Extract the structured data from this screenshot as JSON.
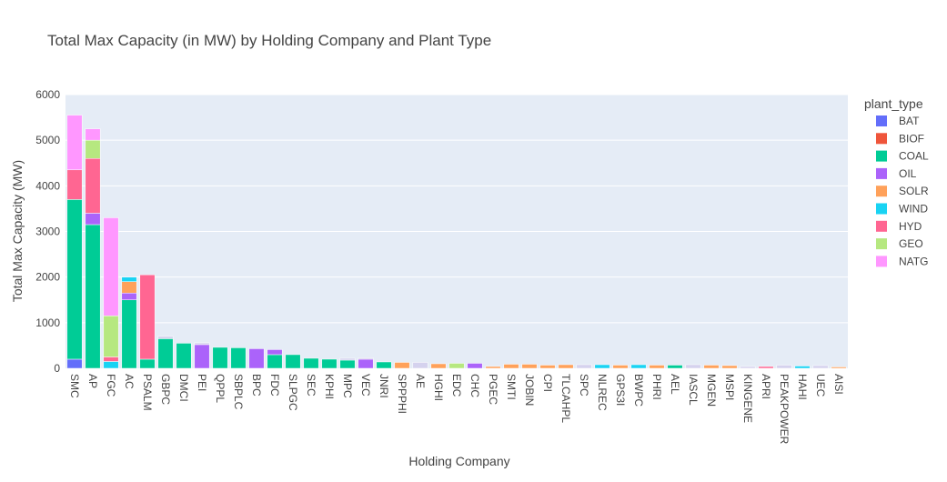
{
  "chart_data": {
    "type": "bar",
    "stacked": true,
    "title": "Total Max Capacity (in MW) by Holding Company and Plant Type",
    "xlabel": "Holding Company",
    "ylabel": "Total Max Capacity (MW)",
    "ylim": [
      0,
      6000
    ],
    "yticks": [
      0,
      1000,
      2000,
      3000,
      4000,
      5000,
      6000
    ],
    "grid": true,
    "legend_title": "plant_type",
    "legend_position": "right",
    "categories": [
      "SMC",
      "AP",
      "FGC",
      "AC",
      "PSALM",
      "GBPC",
      "DMCI",
      "PEI",
      "QPPL",
      "SBPLC",
      "BPC",
      "FDC",
      "SLPGC",
      "SEC",
      "KPHI",
      "MPC",
      "VEC",
      "JNRI",
      "SPPPHI",
      "AE",
      "HGHI",
      "EDC",
      "CHC",
      "PGEC",
      "SMTI",
      "JOBIN",
      "CPI",
      "TLCAHPL",
      "SPC",
      "NLREC",
      "GPS3I",
      "BWPC",
      "PHRI",
      "AEL",
      "IASCL",
      "MGEN",
      "MSPI",
      "KINGENE",
      "APRI",
      "PEAKPOWER",
      "HAHI",
      "UEC",
      "AISI"
    ],
    "series": [
      {
        "name": "BAT",
        "color": "#636efa",
        "values": [
          200,
          0,
          0,
          0,
          0,
          0,
          0,
          0,
          0,
          0,
          0,
          0,
          0,
          0,
          0,
          0,
          0,
          0,
          0,
          0,
          0,
          0,
          0,
          0,
          0,
          0,
          0,
          0,
          0,
          0,
          0,
          0,
          0,
          0,
          0,
          0,
          0,
          0,
          0,
          0,
          0,
          0,
          0
        ]
      },
      {
        "name": "BIOF",
        "color": "#EF553B",
        "values": [
          0,
          0,
          0,
          0,
          0,
          0,
          0,
          0,
          0,
          0,
          0,
          0,
          0,
          0,
          0,
          0,
          0,
          0,
          0,
          0,
          0,
          0,
          0,
          0,
          0,
          0,
          0,
          0,
          0,
          0,
          0,
          0,
          0,
          0,
          0,
          0,
          0,
          0,
          0,
          0,
          0,
          0,
          0
        ]
      },
      {
        "name": "COAL",
        "color": "#00cc96",
        "values": [
          3500,
          3150,
          0,
          1500,
          200,
          650,
          550,
          0,
          460,
          450,
          0,
          300,
          300,
          220,
          200,
          180,
          0,
          140,
          0,
          0,
          0,
          0,
          0,
          0,
          0,
          0,
          0,
          0,
          0,
          0,
          0,
          0,
          0,
          70,
          0,
          0,
          0,
          0,
          0,
          0,
          0,
          0,
          0
        ]
      },
      {
        "name": "OIL",
        "color": "#ab63fa",
        "values": [
          0,
          250,
          0,
          150,
          0,
          0,
          0,
          520,
          0,
          0,
          430,
          110,
          0,
          0,
          0,
          0,
          200,
          0,
          0,
          0,
          0,
          0,
          110,
          0,
          0,
          0,
          0,
          0,
          0,
          0,
          0,
          0,
          0,
          0,
          0,
          0,
          0,
          0,
          0,
          0,
          0,
          0,
          0
        ]
      },
      {
        "name": "SOLR",
        "color": "#FFA15A",
        "values": [
          0,
          0,
          0,
          250,
          0,
          0,
          0,
          0,
          0,
          0,
          0,
          0,
          0,
          0,
          0,
          0,
          0,
          0,
          130,
          0,
          100,
          0,
          0,
          40,
          90,
          90,
          70,
          80,
          0,
          0,
          70,
          0,
          70,
          0,
          0,
          70,
          60,
          0,
          0,
          0,
          0,
          0,
          30
        ]
      },
      {
        "name": "WIND",
        "color": "#19d3f3",
        "values": [
          0,
          0,
          150,
          100,
          0,
          0,
          0,
          0,
          0,
          0,
          0,
          0,
          0,
          0,
          0,
          0,
          0,
          0,
          0,
          0,
          0,
          0,
          0,
          0,
          0,
          0,
          0,
          0,
          0,
          80,
          0,
          80,
          0,
          0,
          0,
          0,
          0,
          0,
          0,
          0,
          50,
          0,
          0
        ]
      },
      {
        "name": "HYD",
        "color": "#FF6692",
        "values": [
          650,
          1200,
          100,
          0,
          1850,
          0,
          0,
          0,
          0,
          0,
          0,
          0,
          0,
          0,
          0,
          0,
          0,
          0,
          0,
          0,
          0,
          0,
          0,
          0,
          0,
          0,
          0,
          0,
          0,
          0,
          0,
          0,
          0,
          0,
          0,
          0,
          0,
          0,
          40,
          0,
          0,
          0,
          0
        ]
      },
      {
        "name": "GEO",
        "color": "#B6E880",
        "values": [
          0,
          400,
          900,
          0,
          0,
          0,
          0,
          0,
          0,
          0,
          0,
          0,
          0,
          0,
          0,
          0,
          0,
          0,
          0,
          0,
          0,
          110,
          0,
          0,
          0,
          0,
          0,
          0,
          0,
          0,
          0,
          0,
          0,
          0,
          0,
          0,
          0,
          0,
          0,
          0,
          0,
          0,
          0
        ]
      },
      {
        "name": "NATG",
        "color": "#FF97FF",
        "values": [
          1200,
          250,
          2150,
          0,
          0,
          0,
          0,
          0,
          0,
          0,
          0,
          0,
          0,
          0,
          0,
          0,
          0,
          0,
          0,
          0,
          0,
          0,
          0,
          0,
          0,
          0,
          0,
          0,
          0,
          0,
          0,
          0,
          0,
          0,
          0,
          0,
          0,
          0,
          0,
          0,
          0,
          0,
          0
        ]
      },
      {
        "name": "",
        "color": "#d5d2ee",
        "values": [
          0,
          0,
          0,
          0,
          0,
          50,
          0,
          40,
          0,
          0,
          0,
          0,
          0,
          0,
          0,
          40,
          30,
          0,
          0,
          130,
          0,
          0,
          0,
          0,
          0,
          0,
          0,
          0,
          80,
          0,
          0,
          0,
          0,
          0,
          80,
          0,
          0,
          40,
          0,
          70,
          0,
          60,
          0
        ]
      }
    ]
  }
}
